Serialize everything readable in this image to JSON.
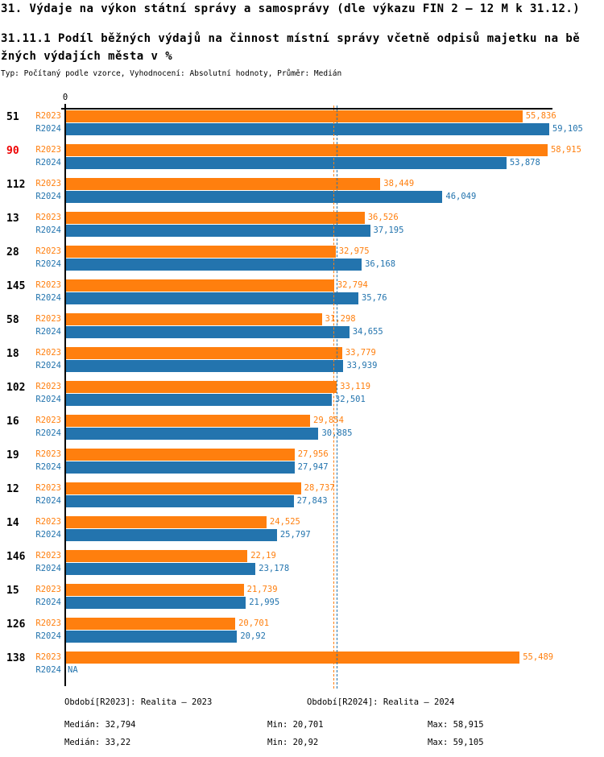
{
  "header": {
    "title": "31. Výdaje na výkon státní správy a samosprávy (dle výkazu FIN 2 – 12 M k 31.12.)",
    "subtitle_line1": "31.11.1 Podíl běžných výdajů na činnost místní správy včetně odpisů majetku na bě",
    "subtitle_line2": "žných výdajích města v %",
    "meta": "Typ: Počítaný podle vzorce, Vyhodnocení: Absolutní hodnoty, Průměr: Medián"
  },
  "colors": {
    "r2023": "#ff7f0e",
    "r2024": "#2374ae",
    "highlight_id": "#ee0000",
    "axis": "#000000"
  },
  "chart_data": {
    "type": "bar",
    "orientation": "horizontal",
    "axis_zero_label": "0",
    "xlim": [
      0,
      59.105
    ],
    "grid": false,
    "series_labels": [
      "R2023",
      "R2024"
    ],
    "medians": {
      "r2023": 32.794,
      "r2024": 33.22
    },
    "rows": [
      {
        "id": "51",
        "highlight": false,
        "r2023": {
          "v": 55.836,
          "label": "55,836"
        },
        "r2024": {
          "v": 59.105,
          "label": "59,105"
        }
      },
      {
        "id": "90",
        "highlight": true,
        "r2023": {
          "v": 58.915,
          "label": "58,915"
        },
        "r2024": {
          "v": 53.878,
          "label": "53,878"
        }
      },
      {
        "id": "112",
        "highlight": false,
        "r2023": {
          "v": 38.449,
          "label": "38,449"
        },
        "r2024": {
          "v": 46.049,
          "label": "46,049"
        }
      },
      {
        "id": "13",
        "highlight": false,
        "r2023": {
          "v": 36.526,
          "label": "36,526"
        },
        "r2024": {
          "v": 37.195,
          "label": "37,195"
        }
      },
      {
        "id": "28",
        "highlight": false,
        "r2023": {
          "v": 32.975,
          "label": "32,975"
        },
        "r2024": {
          "v": 36.168,
          "label": "36,168"
        }
      },
      {
        "id": "145",
        "highlight": false,
        "r2023": {
          "v": 32.794,
          "label": "32,794"
        },
        "r2024": {
          "v": 35.76,
          "label": "35,76"
        }
      },
      {
        "id": "58",
        "highlight": false,
        "r2023": {
          "v": 31.298,
          "label": "31,298"
        },
        "r2024": {
          "v": 34.655,
          "label": "34,655"
        }
      },
      {
        "id": "18",
        "highlight": false,
        "r2023": {
          "v": 33.779,
          "label": "33,779"
        },
        "r2024": {
          "v": 33.939,
          "label": "33,939"
        }
      },
      {
        "id": "102",
        "highlight": false,
        "r2023": {
          "v": 33.119,
          "label": "33,119"
        },
        "r2024": {
          "v": 32.501,
          "label": "32,501"
        }
      },
      {
        "id": "16",
        "highlight": false,
        "r2023": {
          "v": 29.854,
          "label": "29,854"
        },
        "r2024": {
          "v": 30.885,
          "label": "30,885"
        }
      },
      {
        "id": "19",
        "highlight": false,
        "r2023": {
          "v": 27.956,
          "label": "27,956"
        },
        "r2024": {
          "v": 27.947,
          "label": "27,947"
        }
      },
      {
        "id": "12",
        "highlight": false,
        "r2023": {
          "v": 28.737,
          "label": "28,737"
        },
        "r2024": {
          "v": 27.843,
          "label": "27,843"
        }
      },
      {
        "id": "14",
        "highlight": false,
        "r2023": {
          "v": 24.525,
          "label": "24,525"
        },
        "r2024": {
          "v": 25.797,
          "label": "25,797"
        }
      },
      {
        "id": "146",
        "highlight": false,
        "r2023": {
          "v": 22.19,
          "label": "22,19"
        },
        "r2024": {
          "v": 23.178,
          "label": "23,178"
        }
      },
      {
        "id": "15",
        "highlight": false,
        "r2023": {
          "v": 21.739,
          "label": "21,739"
        },
        "r2024": {
          "v": 21.995,
          "label": "21,995"
        }
      },
      {
        "id": "126",
        "highlight": false,
        "r2023": {
          "v": 20.701,
          "label": "20,701"
        },
        "r2024": {
          "v": 20.92,
          "label": "20,92"
        }
      },
      {
        "id": "138",
        "highlight": false,
        "r2023": {
          "v": 55.489,
          "label": "55,489"
        },
        "r2024": {
          "v": null,
          "label": "NA"
        }
      }
    ]
  },
  "legend": {
    "period_r2023": "Období[R2023]: Realita – 2023",
    "period_r2024": "Období[R2024]: Realita – 2024",
    "stats_r2023": {
      "median": "Medián: 32,794",
      "min": "Min: 20,701",
      "max": "Max: 58,915"
    },
    "stats_r2024": {
      "median": "Medián: 33,22",
      "min": "Min: 20,92",
      "max": "Max: 59,105"
    }
  }
}
